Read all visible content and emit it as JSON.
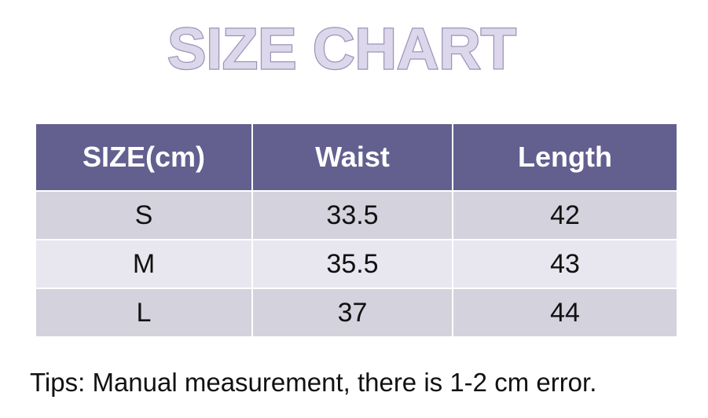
{
  "header": {
    "title": "SIZE CHART"
  },
  "table": {
    "columns": [
      "SIZE(cm)",
      "Waist",
      "Length"
    ],
    "rows": [
      [
        "S",
        "33.5",
        "42"
      ],
      [
        "M",
        "35.5",
        "43"
      ],
      [
        "L",
        "37",
        "44"
      ]
    ]
  },
  "footer": {
    "tips": "Tips: Manual measurement, there is 1-2 cm error."
  }
}
